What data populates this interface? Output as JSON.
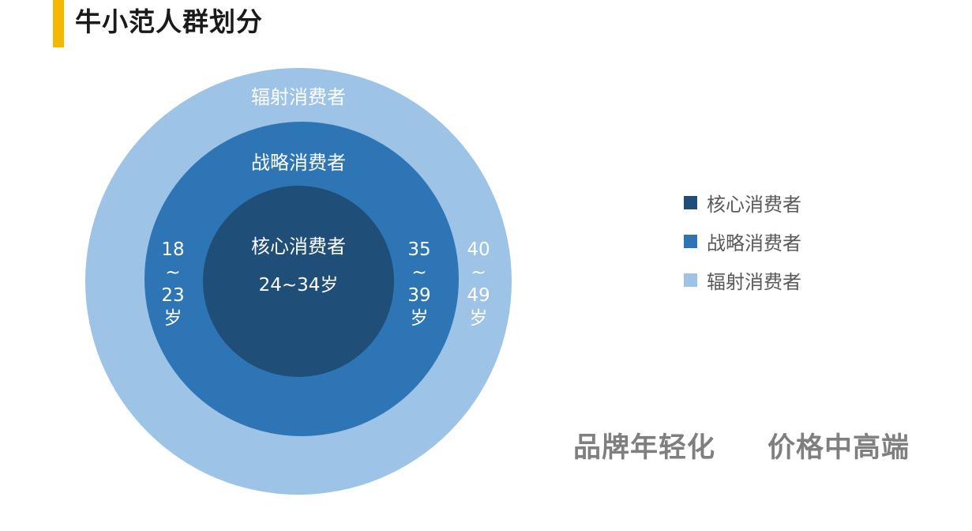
{
  "page": {
    "title": "牛小范人群划分",
    "accent_color": "#F5B800"
  },
  "diagram": {
    "type": "concentric-circles",
    "rings": [
      {
        "label": "核心消费者",
        "age_range": "24~34岁",
        "color": "#1F4E79"
      },
      {
        "label": "战略消费者",
        "age_parts": [
          "18",
          "~",
          "23",
          "岁"
        ],
        "age_parts_right": [
          "35",
          "~",
          "39",
          "岁"
        ],
        "color": "#2E75B6"
      },
      {
        "label": "辐射消费者",
        "age_parts": [
          "40",
          "~",
          "49",
          "岁"
        ],
        "color": "#9DC3E6"
      }
    ]
  },
  "legend": {
    "items": [
      {
        "label": "核心消费者",
        "color": "#1F4E79"
      },
      {
        "label": "战略消费者",
        "color": "#2E75B6"
      },
      {
        "label": "辐射消费者",
        "color": "#9DC3E6"
      }
    ]
  },
  "slogans": [
    "品牌年轻化",
    "价格中高端"
  ]
}
